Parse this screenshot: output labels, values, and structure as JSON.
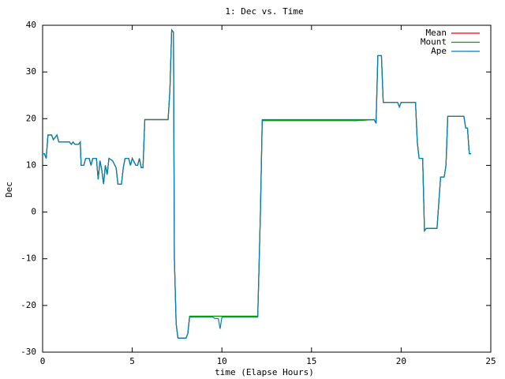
{
  "chart_data": {
    "type": "line",
    "title": "1: Dec vs. Time",
    "x_label": "time (Elapse Hours)",
    "y_label": "Dec",
    "xlim": [
      0,
      25
    ],
    "xticks": [
      0,
      5,
      10,
      15,
      20,
      25
    ],
    "ylim": [
      -30,
      40
    ],
    "yticks": [
      -30,
      -20,
      -10,
      0,
      10,
      20,
      30,
      40
    ],
    "grid": false,
    "legend": "top-right",
    "x": [
      0,
      0.1,
      0.2,
      0.3,
      0.5,
      0.6,
      0.8,
      0.9,
      1.5,
      1.6,
      1.7,
      1.8,
      2.0,
      2.1,
      2.15,
      2.3,
      2.4,
      2.6,
      2.7,
      2.8,
      3.0,
      3.1,
      3.2,
      3.3,
      3.4,
      3.5,
      3.6,
      3.7,
      3.9,
      4.1,
      4.2,
      4.4,
      4.5,
      4.6,
      4.8,
      4.9,
      5.0,
      5.2,
      5.3,
      5.4,
      5.5,
      5.6,
      5.7,
      7.0,
      7.1,
      7.2,
      7.3,
      7.35,
      7.45,
      7.55,
      8.0,
      8.1,
      8.2,
      9.5,
      9.6,
      9.8,
      9.9,
      10.0,
      12.0,
      12.05,
      12.15,
      12.25,
      17.5,
      18.5,
      18.6,
      18.7,
      18.9,
      19.0,
      19.8,
      19.9,
      20.0,
      20.8,
      20.9,
      21.0,
      21.2,
      21.3,
      21.4,
      22.0,
      22.1,
      22.2,
      22.4,
      22.5,
      22.6,
      23.5,
      23.6,
      23.7,
      23.8,
      23.9
    ],
    "series": [
      {
        "name": "Mean",
        "color": "#ff0000",
        "values": [
          12.5,
          12.5,
          11.5,
          16.5,
          16.5,
          15.5,
          16.5,
          15,
          15,
          14.5,
          15,
          14.5,
          14.5,
          15,
          10,
          10,
          11.5,
          11.5,
          10,
          11.5,
          11.5,
          7,
          11,
          9,
          6,
          10,
          8,
          11.5,
          11,
          9.5,
          6,
          6,
          9.5,
          11.5,
          11.5,
          10,
          11.5,
          10,
          10,
          11.5,
          9.5,
          9.5,
          19.8,
          19.8,
          26,
          39,
          38.5,
          -10,
          -24,
          -27,
          -27,
          -26,
          -22.3,
          -22.3,
          -22.3,
          -22.3,
          -22.3,
          -22.3,
          -22.3,
          -15,
          0,
          19.6,
          19.6,
          19.8,
          19,
          33.5,
          33.5,
          23.5,
          23.5,
          22.5,
          23.5,
          23.5,
          15,
          11.5,
          11.5,
          -4,
          -3.5,
          -3.5,
          2,
          7.5,
          7.5,
          10,
          20.5,
          20.5,
          18,
          18,
          12.5,
          12.5
        ]
      },
      {
        "name": "Mount",
        "color": "#00a000",
        "values": [
          12.5,
          12.5,
          11.5,
          16.5,
          16.5,
          15.5,
          16.5,
          15,
          15,
          14.5,
          15,
          14.5,
          14.5,
          15,
          10,
          10,
          11.5,
          11.5,
          10,
          11.5,
          11.5,
          7,
          11,
          9,
          6,
          10,
          8,
          11.5,
          11,
          9.5,
          6,
          6,
          9.5,
          11.5,
          11.5,
          10,
          11.5,
          10,
          10,
          11.5,
          9.5,
          9.5,
          19.8,
          19.8,
          26,
          39,
          38.5,
          -10,
          -24,
          -27,
          -27,
          -26,
          -22.3,
          -22.3,
          -22.3,
          -22.3,
          -22.3,
          -22.3,
          -22.3,
          -15,
          0,
          19.6,
          19.6,
          19.8,
          19,
          33.5,
          33.5,
          23.5,
          23.5,
          22.5,
          23.5,
          23.5,
          15,
          11.5,
          11.5,
          -4,
          -3.5,
          -3.5,
          2,
          7.5,
          7.5,
          10,
          20.5,
          20.5,
          18,
          18,
          12.5,
          12.5
        ]
      },
      {
        "name": "Ape",
        "color": "#0080c0",
        "values": [
          12.5,
          12.5,
          11.5,
          16.5,
          16.5,
          15.5,
          16.5,
          15,
          15,
          14.5,
          15,
          14.5,
          14.5,
          15,
          10,
          10,
          11.5,
          11.5,
          10,
          11.5,
          11.5,
          7,
          11,
          9,
          6,
          10,
          8,
          11.5,
          11,
          9.5,
          6,
          6,
          9.5,
          11.5,
          11.5,
          10,
          11.5,
          10,
          10,
          11.5,
          9.5,
          9.5,
          19.8,
          19.8,
          26,
          39,
          38.5,
          -10,
          -24,
          -27,
          -27,
          -26,
          -22.5,
          -22.5,
          -22.8,
          -22.8,
          -25,
          -22.5,
          -22.5,
          -15,
          0,
          19.8,
          19.8,
          19.8,
          19,
          33.5,
          33.5,
          23.5,
          23.5,
          22.5,
          23.5,
          23.5,
          15,
          11.5,
          11.5,
          -4,
          -3.5,
          -3.5,
          2,
          7.5,
          7.5,
          10,
          20.5,
          20.5,
          18,
          18,
          12.5,
          12.5
        ]
      }
    ]
  }
}
